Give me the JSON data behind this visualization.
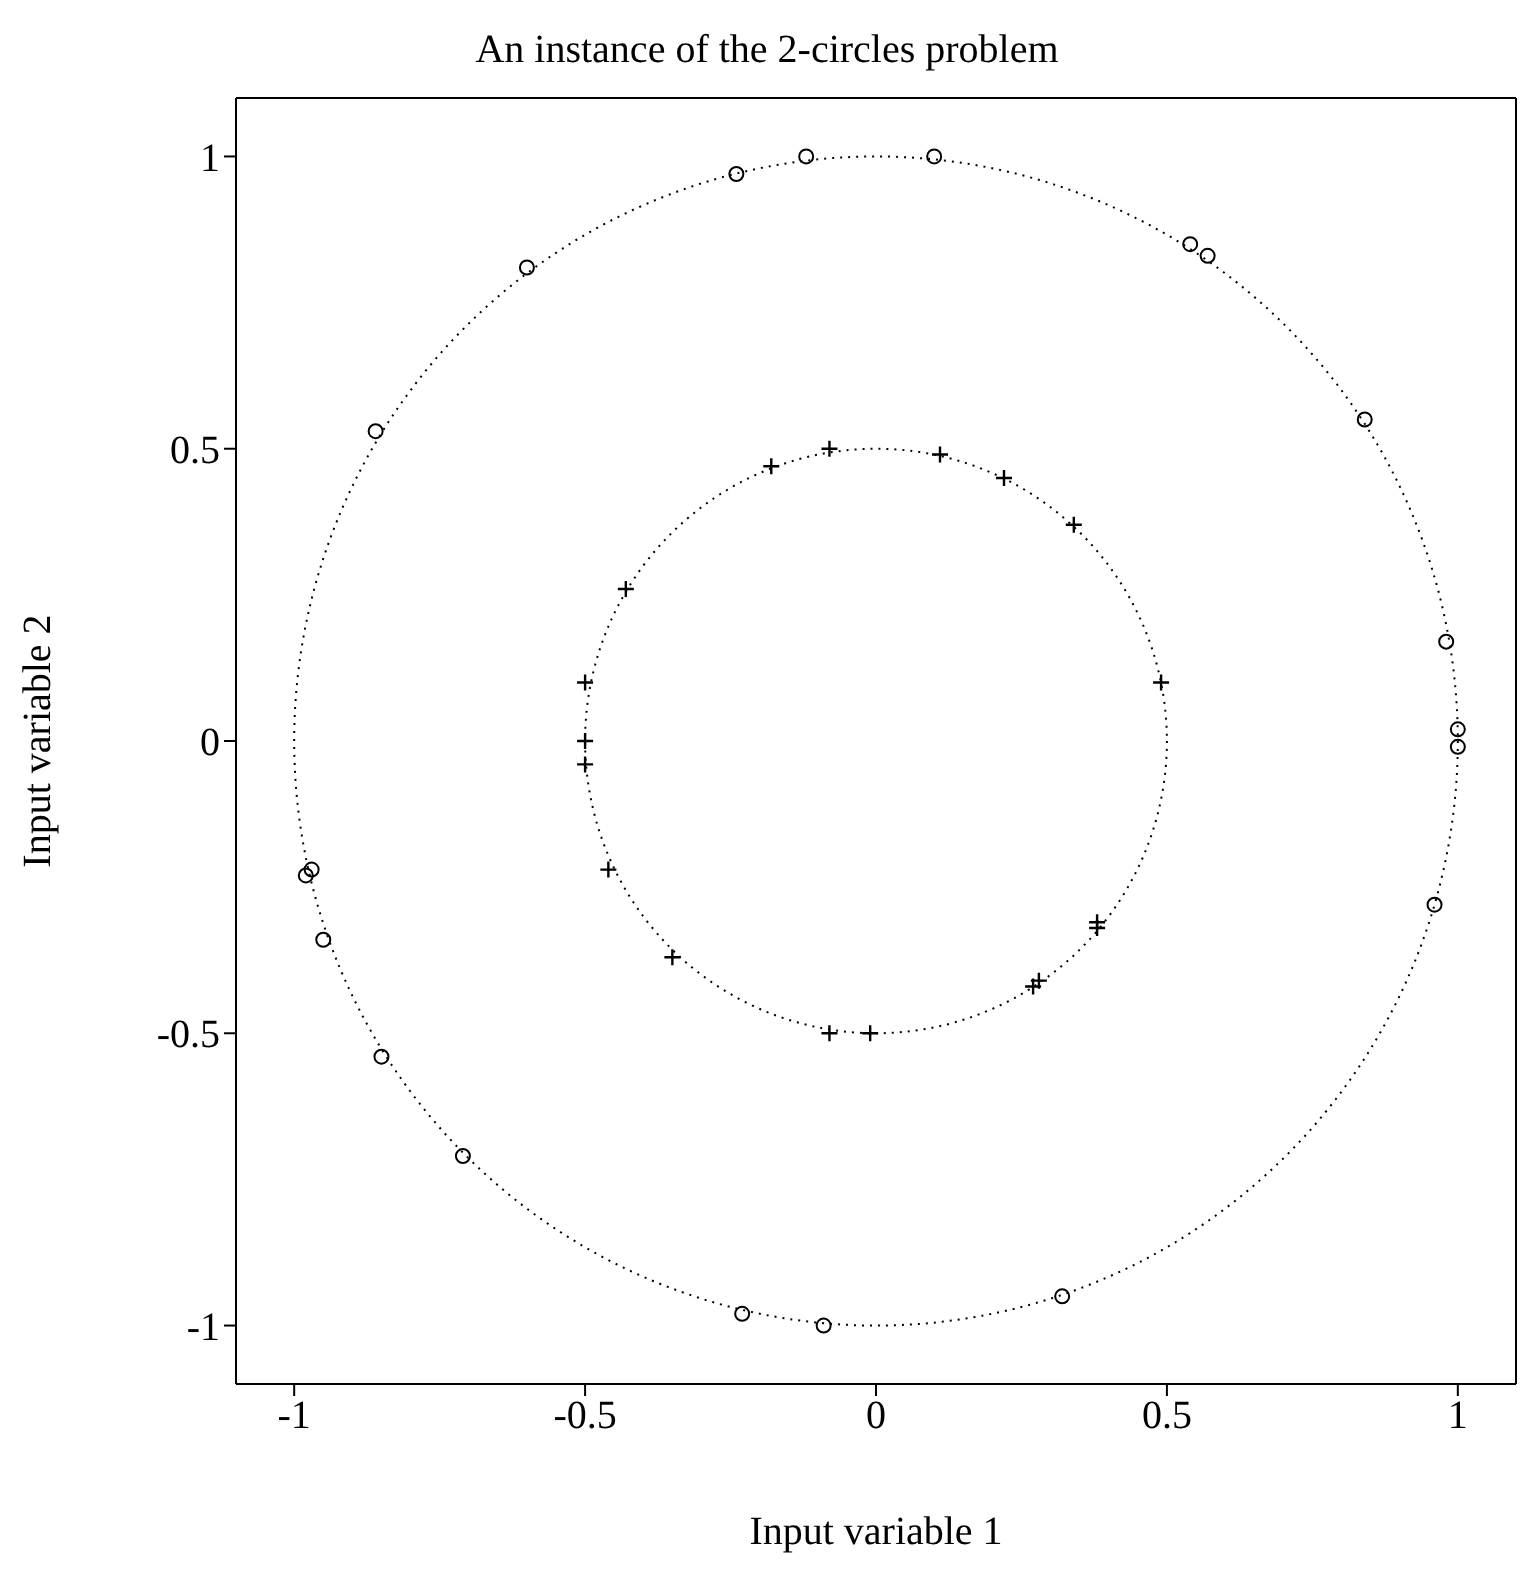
{
  "chart_data": {
    "type": "scatter",
    "title": "An instance of the 2-circles problem",
    "xlabel": "Input variable 1",
    "ylabel": "Input variable 2",
    "xlim": [
      -1.1,
      1.1
    ],
    "ylim": [
      -1.1,
      1.1
    ],
    "xticks": [
      -1,
      -0.5,
      0,
      0.5,
      1
    ],
    "yticks": [
      -1,
      -0.5,
      0,
      0.5,
      1
    ],
    "series": [
      {
        "color": "#000000",
        "marker": "circle",
        "x": [
          -0.24,
          -0.12,
          0.1,
          -0.6,
          -0.86,
          0.54,
          0.57,
          0.84,
          0.98,
          1.0,
          1.0,
          0.96,
          -0.97,
          -0.98,
          -0.95,
          -0.85,
          -0.71,
          -0.23,
          -0.09,
          0.32
        ],
        "values": [
          0.97,
          1.0,
          1.0,
          0.81,
          0.53,
          0.85,
          0.83,
          0.55,
          0.17,
          0.02,
          -0.01,
          -0.28,
          -0.22,
          -0.23,
          -0.34,
          -0.54,
          -0.71,
          -0.98,
          -1.0,
          -0.95
        ]
      },
      {
        "color": "#000000",
        "marker": "cross",
        "x": [
          -0.08,
          -0.18,
          0.11,
          0.22,
          0.34,
          -0.43,
          -0.5,
          -0.5,
          -0.5,
          -0.46,
          -0.35,
          -0.08,
          -0.01,
          0.27,
          0.28,
          0.38,
          0.38,
          0.49
        ],
        "values": [
          0.5,
          0.47,
          0.49,
          0.45,
          0.37,
          0.26,
          0.1,
          0,
          -0.04,
          -0.22,
          -0.37,
          -0.5,
          -0.5,
          -0.42,
          -0.41,
          -0.32,
          -0.31,
          0.1
        ]
      }
    ]
  }
}
